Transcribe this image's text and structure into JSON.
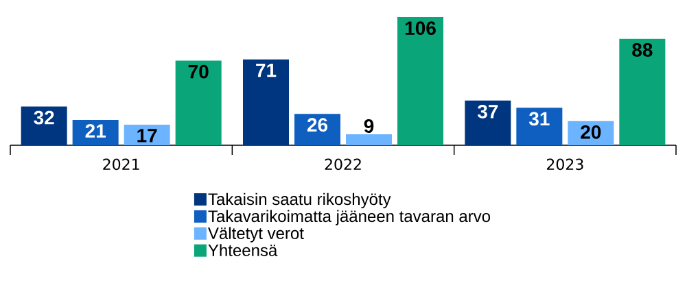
{
  "chart_data": {
    "type": "bar",
    "categories": [
      "2021",
      "2022",
      "2023"
    ],
    "series": [
      {
        "name": "Takaisin saatu rikoshyöty",
        "color": "#003580",
        "values": [
          32,
          71,
          37
        ]
      },
      {
        "name": "Takavarikoimatta jääneen tavaran arvo",
        "color": "#0f5fc0",
        "values": [
          21,
          26,
          31
        ]
      },
      {
        "name": "Vältetyt verot",
        "color": "#6cb4ff",
        "values": [
          17,
          9,
          20
        ]
      },
      {
        "name": "Yhteensä",
        "color": "#0aa679",
        "values": [
          70,
          106,
          88
        ]
      }
    ],
    "data_labels": true,
    "legend": "bottom"
  }
}
